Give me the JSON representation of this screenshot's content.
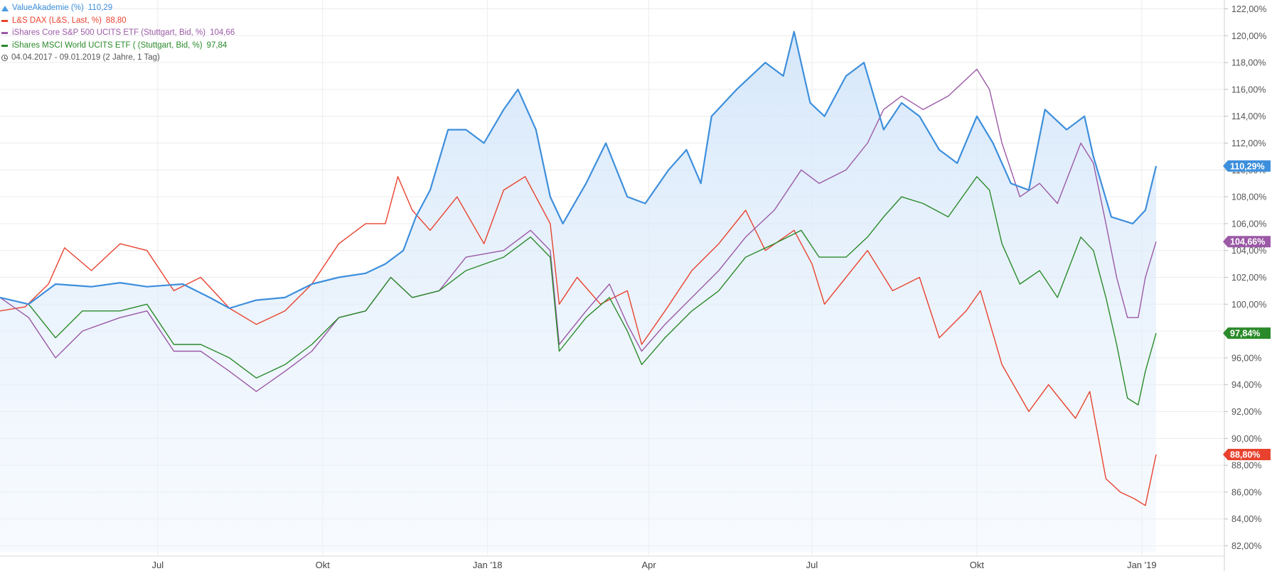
{
  "legend": {
    "items": [
      {
        "label": "ValueAkademie (%)",
        "value": "110,29",
        "color": "#3d8fdc"
      },
      {
        "label": "L&S DAX (L&S, Last, %)",
        "value": "88,80",
        "color": "#e8422e"
      },
      {
        "label": "iShares Core S&P 500 UCITS ETF (Stuttgart, Bid, %)",
        "value": "104,66",
        "color": "#9b59a6"
      },
      {
        "label": "iShares MSCI World UCITS ETF ( (Stuttgart, Bid, %)",
        "value": "97,84",
        "color": "#2a8a2a"
      }
    ],
    "period": "04.04.2017 - 09.01.2019  (2 Jahre, 1 Tag)"
  },
  "chart_data": {
    "type": "line",
    "ylim": [
      81.5,
      122.5
    ],
    "y_ticks": [
      "82,00%",
      "84,00%",
      "86,00%",
      "88,00%",
      "90,00%",
      "92,00%",
      "94,00%",
      "96,00%",
      "98,00%",
      "100,00%",
      "102,00%",
      "104,00%",
      "106,00%",
      "108,00%",
      "110,00%",
      "112,00%",
      "114,00%",
      "116,00%",
      "118,00%",
      "120,00%",
      "122,00%"
    ],
    "x_domain": [
      "2017-04-04",
      "2019-01-09"
    ],
    "x_ticks": [
      {
        "label": "Jul",
        "date": "2017-07-01"
      },
      {
        "label": "Okt",
        "date": "2017-10-01"
      },
      {
        "label": "Jan '18",
        "date": "2018-01-01"
      },
      {
        "label": "Apr",
        "date": "2018-04-01"
      },
      {
        "label": "Jul",
        "date": "2018-07-01"
      },
      {
        "label": "Okt",
        "date": "2018-10-01"
      },
      {
        "label": "Jan '19",
        "date": "2019-01-01"
      }
    ],
    "grid": true,
    "series": [
      {
        "name": "ValueAkademie (%)",
        "color": "#3d8fdc",
        "area": true,
        "end_label": "110,29%",
        "end_value": 110.29,
        "points": [
          [
            "2017-04-04",
            100.5
          ],
          [
            "2017-04-20",
            100.0
          ],
          [
            "2017-05-05",
            101.5
          ],
          [
            "2017-05-25",
            101.3
          ],
          [
            "2017-06-10",
            101.6
          ],
          [
            "2017-06-25",
            101.3
          ],
          [
            "2017-07-15",
            101.5
          ],
          [
            "2017-07-30",
            100.5
          ],
          [
            "2017-08-10",
            99.7
          ],
          [
            "2017-08-25",
            100.3
          ],
          [
            "2017-09-10",
            100.5
          ],
          [
            "2017-09-25",
            101.5
          ],
          [
            "2017-10-10",
            102.0
          ],
          [
            "2017-10-25",
            102.3
          ],
          [
            "2017-11-05",
            103.0
          ],
          [
            "2017-11-15",
            104.0
          ],
          [
            "2017-11-22",
            106.5
          ],
          [
            "2017-11-30",
            108.5
          ],
          [
            "2017-12-10",
            113.0
          ],
          [
            "2017-12-20",
            113.0
          ],
          [
            "2017-12-30",
            112.0
          ],
          [
            "2018-01-10",
            114.5
          ],
          [
            "2018-01-18",
            116.0
          ],
          [
            "2018-01-28",
            113.0
          ],
          [
            "2018-02-05",
            108.0
          ],
          [
            "2018-02-12",
            106.0
          ],
          [
            "2018-02-25",
            109.0
          ],
          [
            "2018-03-08",
            112.0
          ],
          [
            "2018-03-20",
            108.0
          ],
          [
            "2018-03-30",
            107.5
          ],
          [
            "2018-04-12",
            110.0
          ],
          [
            "2018-04-22",
            111.5
          ],
          [
            "2018-04-30",
            109.0
          ],
          [
            "2018-05-06",
            114.0
          ],
          [
            "2018-05-20",
            116.0
          ],
          [
            "2018-06-05",
            118.0
          ],
          [
            "2018-06-15",
            117.0
          ],
          [
            "2018-06-21",
            120.3
          ],
          [
            "2018-06-30",
            115.0
          ],
          [
            "2018-07-08",
            114.0
          ],
          [
            "2018-07-20",
            117.0
          ],
          [
            "2018-07-30",
            118.0
          ],
          [
            "2018-08-10",
            113.0
          ],
          [
            "2018-08-20",
            115.0
          ],
          [
            "2018-08-30",
            114.0
          ],
          [
            "2018-09-10",
            111.5
          ],
          [
            "2018-09-20",
            110.5
          ],
          [
            "2018-10-01",
            114.0
          ],
          [
            "2018-10-10",
            112.0
          ],
          [
            "2018-10-20",
            109.0
          ],
          [
            "2018-10-30",
            108.5
          ],
          [
            "2018-11-08",
            114.5
          ],
          [
            "2018-11-20",
            113.0
          ],
          [
            "2018-11-30",
            114.0
          ],
          [
            "2018-12-05",
            111.0
          ],
          [
            "2018-12-15",
            106.5
          ],
          [
            "2018-12-27",
            106.0
          ],
          [
            "2019-01-03",
            107.0
          ],
          [
            "2019-01-09",
            110.29
          ]
        ]
      },
      {
        "name": "L&S DAX (L&S, Last, %)",
        "color": "#e8422e",
        "area": false,
        "end_label": "88,80%",
        "end_value": 88.8,
        "points": [
          [
            "2017-04-04",
            99.5
          ],
          [
            "2017-04-18",
            99.8
          ],
          [
            "2017-05-01",
            101.5
          ],
          [
            "2017-05-10",
            104.2
          ],
          [
            "2017-05-25",
            102.5
          ],
          [
            "2017-06-10",
            104.5
          ],
          [
            "2017-06-25",
            104.0
          ],
          [
            "2017-07-10",
            101.0
          ],
          [
            "2017-07-25",
            102.0
          ],
          [
            "2017-08-10",
            99.7
          ],
          [
            "2017-08-25",
            98.5
          ],
          [
            "2017-09-10",
            99.5
          ],
          [
            "2017-09-25",
            101.5
          ],
          [
            "2017-10-10",
            104.5
          ],
          [
            "2017-10-25",
            106.0
          ],
          [
            "2017-11-05",
            106.0
          ],
          [
            "2017-11-12",
            109.5
          ],
          [
            "2017-11-20",
            107.0
          ],
          [
            "2017-11-30",
            105.5
          ],
          [
            "2017-12-15",
            108.0
          ],
          [
            "2017-12-30",
            104.5
          ],
          [
            "2018-01-10",
            108.5
          ],
          [
            "2018-01-22",
            109.5
          ],
          [
            "2018-02-05",
            106.0
          ],
          [
            "2018-02-10",
            100.0
          ],
          [
            "2018-02-20",
            102.0
          ],
          [
            "2018-03-05",
            100.0
          ],
          [
            "2018-03-20",
            101.0
          ],
          [
            "2018-03-28",
            97.0
          ],
          [
            "2018-04-10",
            99.5
          ],
          [
            "2018-04-25",
            102.5
          ],
          [
            "2018-05-10",
            104.5
          ],
          [
            "2018-05-25",
            107.0
          ],
          [
            "2018-06-05",
            104.0
          ],
          [
            "2018-06-21",
            105.5
          ],
          [
            "2018-07-01",
            103.0
          ],
          [
            "2018-07-08",
            100.0
          ],
          [
            "2018-07-20",
            102.0
          ],
          [
            "2018-08-01",
            104.0
          ],
          [
            "2018-08-15",
            101.0
          ],
          [
            "2018-08-30",
            102.0
          ],
          [
            "2018-09-10",
            97.5
          ],
          [
            "2018-09-25",
            99.5
          ],
          [
            "2018-10-03",
            101.0
          ],
          [
            "2018-10-15",
            95.5
          ],
          [
            "2018-10-30",
            92.0
          ],
          [
            "2018-11-10",
            94.0
          ],
          [
            "2018-11-25",
            91.5
          ],
          [
            "2018-12-03",
            93.5
          ],
          [
            "2018-12-12",
            87.0
          ],
          [
            "2018-12-20",
            86.0
          ],
          [
            "2018-12-28",
            85.5
          ],
          [
            "2019-01-03",
            85.0
          ],
          [
            "2019-01-09",
            88.8
          ]
        ]
      },
      {
        "name": "iShares Core S&P 500 UCITS ETF (Stuttgart, Bid, %)",
        "color": "#9b59a6",
        "area": false,
        "end_label": "104,66%",
        "end_value": 104.66,
        "points": [
          [
            "2017-04-04",
            100.5
          ],
          [
            "2017-04-20",
            99.0
          ],
          [
            "2017-05-05",
            96.0
          ],
          [
            "2017-05-20",
            98.0
          ],
          [
            "2017-06-10",
            99.0
          ],
          [
            "2017-06-25",
            99.5
          ],
          [
            "2017-07-10",
            96.5
          ],
          [
            "2017-07-25",
            96.5
          ],
          [
            "2017-08-10",
            95.0
          ],
          [
            "2017-08-25",
            93.5
          ],
          [
            "2017-09-10",
            95.0
          ],
          [
            "2017-09-25",
            96.5
          ],
          [
            "2017-10-10",
            99.0
          ],
          [
            "2017-10-25",
            99.5
          ],
          [
            "2017-11-08",
            102.0
          ],
          [
            "2017-11-20",
            100.5
          ],
          [
            "2017-12-05",
            101.0
          ],
          [
            "2017-12-20",
            103.5
          ],
          [
            "2018-01-10",
            104.0
          ],
          [
            "2018-01-25",
            105.5
          ],
          [
            "2018-02-05",
            104.0
          ],
          [
            "2018-02-10",
            97.0
          ],
          [
            "2018-02-25",
            99.5
          ],
          [
            "2018-03-10",
            101.5
          ],
          [
            "2018-03-20",
            98.5
          ],
          [
            "2018-03-28",
            96.5
          ],
          [
            "2018-04-10",
            98.5
          ],
          [
            "2018-04-25",
            100.5
          ],
          [
            "2018-05-10",
            102.5
          ],
          [
            "2018-05-25",
            105.0
          ],
          [
            "2018-06-10",
            107.0
          ],
          [
            "2018-06-25",
            110.0
          ],
          [
            "2018-07-05",
            109.0
          ],
          [
            "2018-07-20",
            110.0
          ],
          [
            "2018-08-01",
            112.0
          ],
          [
            "2018-08-10",
            114.5
          ],
          [
            "2018-08-20",
            115.5
          ],
          [
            "2018-09-01",
            114.5
          ],
          [
            "2018-09-15",
            115.5
          ],
          [
            "2018-10-01",
            117.5
          ],
          [
            "2018-10-08",
            116.0
          ],
          [
            "2018-10-15",
            112.0
          ],
          [
            "2018-10-25",
            108.0
          ],
          [
            "2018-11-05",
            109.0
          ],
          [
            "2018-11-15",
            107.5
          ],
          [
            "2018-11-28",
            112.0
          ],
          [
            "2018-12-05",
            110.5
          ],
          [
            "2018-12-12",
            106.0
          ],
          [
            "2018-12-18",
            102.0
          ],
          [
            "2018-12-24",
            99.0
          ],
          [
            "2018-12-30",
            99.0
          ],
          [
            "2019-01-03",
            102.0
          ],
          [
            "2019-01-09",
            104.66
          ]
        ]
      },
      {
        "name": "iShares MSCI World UCITS ETF ( (Stuttgart, Bid, %)",
        "color": "#2a8a2a",
        "area": false,
        "end_label": "97,84%",
        "end_value": 97.84,
        "points": [
          [
            "2017-04-04",
            100.5
          ],
          [
            "2017-04-20",
            100.0
          ],
          [
            "2017-05-05",
            97.5
          ],
          [
            "2017-05-20",
            99.5
          ],
          [
            "2017-06-10",
            99.5
          ],
          [
            "2017-06-25",
            100.0
          ],
          [
            "2017-07-10",
            97.0
          ],
          [
            "2017-07-25",
            97.0
          ],
          [
            "2017-08-10",
            96.0
          ],
          [
            "2017-08-25",
            94.5
          ],
          [
            "2017-09-10",
            95.5
          ],
          [
            "2017-09-25",
            97.0
          ],
          [
            "2017-10-10",
            99.0
          ],
          [
            "2017-10-25",
            99.5
          ],
          [
            "2017-11-08",
            102.0
          ],
          [
            "2017-11-20",
            100.5
          ],
          [
            "2017-12-05",
            101.0
          ],
          [
            "2017-12-20",
            102.5
          ],
          [
            "2018-01-10",
            103.5
          ],
          [
            "2018-01-25",
            105.0
          ],
          [
            "2018-02-05",
            103.5
          ],
          [
            "2018-02-10",
            96.5
          ],
          [
            "2018-02-25",
            99.0
          ],
          [
            "2018-03-10",
            100.5
          ],
          [
            "2018-03-20",
            98.0
          ],
          [
            "2018-03-28",
            95.5
          ],
          [
            "2018-04-10",
            97.5
          ],
          [
            "2018-04-25",
            99.5
          ],
          [
            "2018-05-10",
            101.0
          ],
          [
            "2018-05-25",
            103.5
          ],
          [
            "2018-06-10",
            104.5
          ],
          [
            "2018-06-25",
            105.5
          ],
          [
            "2018-07-05",
            103.5
          ],
          [
            "2018-07-20",
            103.5
          ],
          [
            "2018-08-01",
            105.0
          ],
          [
            "2018-08-10",
            106.5
          ],
          [
            "2018-08-20",
            108.0
          ],
          [
            "2018-09-01",
            107.5
          ],
          [
            "2018-09-15",
            106.5
          ],
          [
            "2018-10-01",
            109.5
          ],
          [
            "2018-10-08",
            108.5
          ],
          [
            "2018-10-15",
            104.5
          ],
          [
            "2018-10-25",
            101.5
          ],
          [
            "2018-11-05",
            102.5
          ],
          [
            "2018-11-15",
            100.5
          ],
          [
            "2018-11-28",
            105.0
          ],
          [
            "2018-12-05",
            104.0
          ],
          [
            "2018-12-12",
            100.5
          ],
          [
            "2018-12-18",
            97.0
          ],
          [
            "2018-12-24",
            93.0
          ],
          [
            "2018-12-30",
            92.5
          ],
          [
            "2019-01-03",
            95.0
          ],
          [
            "2019-01-09",
            97.84
          ]
        ]
      }
    ]
  }
}
